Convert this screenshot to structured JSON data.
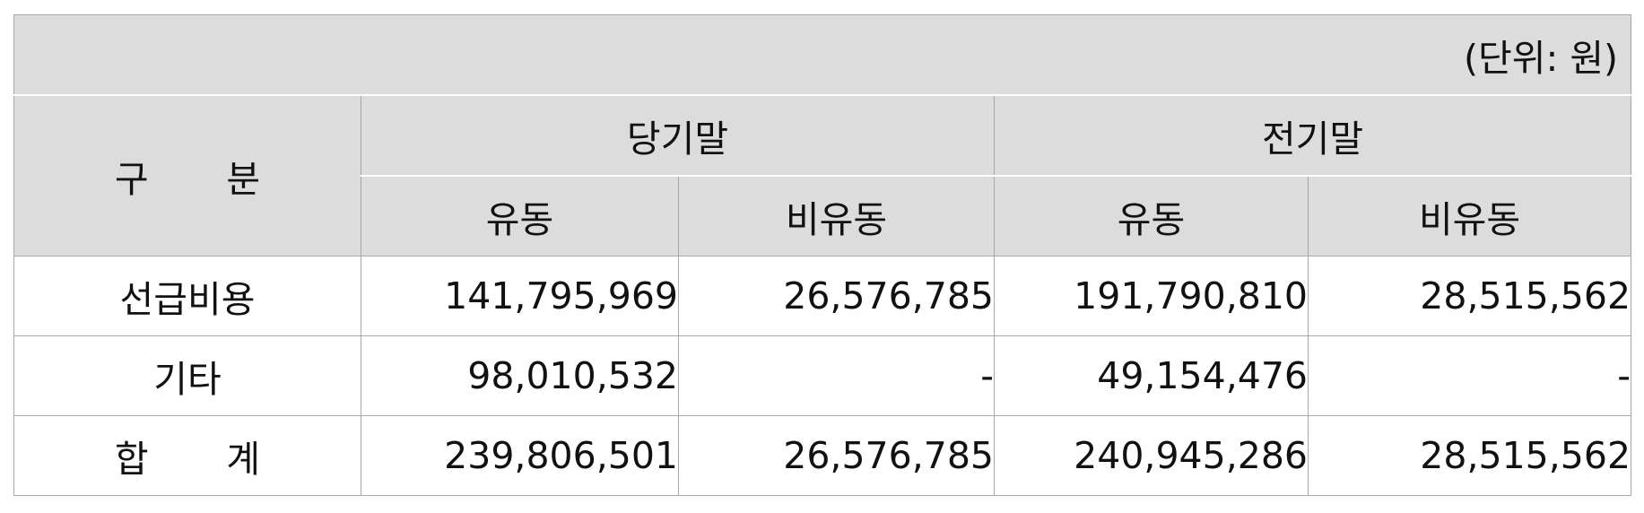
{
  "unit_note": "(단위: 원)",
  "header": {
    "division_label": "구 분",
    "groups": [
      {
        "label": "당기말",
        "sub": [
          "유동",
          "비유동"
        ]
      },
      {
        "label": "전기말",
        "sub": [
          "유동",
          "비유동"
        ]
      }
    ]
  },
  "rows": [
    {
      "label": "선급비용",
      "values": [
        "141,795,969",
        "26,576,785",
        "191,790,810",
        "28,515,562"
      ]
    },
    {
      "label": "기타",
      "values": [
        "98,010,532",
        "-",
        "49,154,476",
        "-"
      ]
    },
    {
      "label": "합 계",
      "values": [
        "239,806,501",
        "26,576,785",
        "240,945,286",
        "28,515,562"
      ]
    }
  ]
}
